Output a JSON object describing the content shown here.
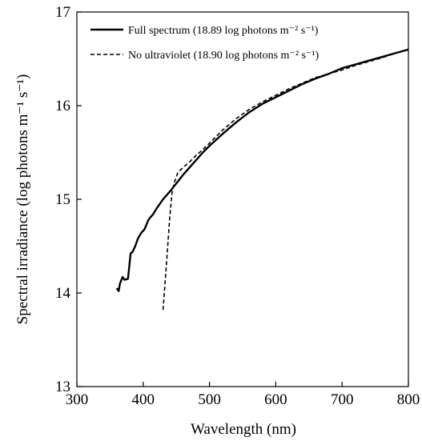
{
  "chart_data": {
    "type": "line",
    "xlabel": "Wavelength (nm)",
    "ylabel": "Spectral irradiance (log photons m⁻¹ s⁻¹)",
    "xlim": [
      300,
      800
    ],
    "ylim": [
      13,
      17
    ],
    "xticks": [
      300,
      400,
      500,
      600,
      700,
      800
    ],
    "yticks": [
      13,
      14,
      15,
      16,
      17
    ],
    "grid": false,
    "legend_position": "top-left",
    "series": [
      {
        "name": "Full spectrum (18.89 log photons m⁻² s⁻¹)",
        "style": "solid",
        "color": "#000000",
        "x": [
          360,
          363,
          365,
          369,
          372,
          377,
          381,
          384,
          388,
          392,
          397,
          402,
          408,
          410,
          415,
          420,
          425,
          430,
          440,
          450,
          460,
          470,
          480,
          490,
          500,
          520,
          540,
          560,
          580,
          600,
          620,
          640,
          660,
          680,
          700,
          720,
          740,
          760,
          780,
          800
        ],
        "y": [
          14.05,
          14.02,
          14.1,
          14.17,
          14.14,
          14.15,
          14.42,
          14.44,
          14.5,
          14.58,
          14.64,
          14.68,
          14.78,
          14.8,
          14.84,
          14.9,
          14.95,
          15.0,
          15.08,
          15.17,
          15.26,
          15.34,
          15.42,
          15.5,
          15.57,
          15.7,
          15.82,
          15.93,
          16.02,
          16.09,
          16.16,
          16.23,
          16.29,
          16.34,
          16.4,
          16.44,
          16.48,
          16.52,
          16.56,
          16.6
        ]
      },
      {
        "name": "No ultraviolet (18.90 log photons m⁻² s⁻¹)",
        "style": "dashed",
        "color": "#000000",
        "x": [
          430,
          435,
          440,
          444,
          448,
          452,
          460,
          470,
          480,
          490,
          500,
          520,
          540,
          560,
          580,
          600,
          620,
          640,
          660,
          680,
          700,
          720,
          740,
          760,
          780,
          800
        ],
        "y": [
          13.82,
          14.3,
          14.8,
          15.1,
          15.2,
          15.28,
          15.34,
          15.4,
          15.47,
          15.53,
          15.6,
          15.74,
          15.86,
          15.96,
          16.04,
          16.11,
          16.18,
          16.24,
          16.3,
          16.34,
          16.38,
          16.43,
          16.47,
          16.51,
          16.56,
          16.6
        ]
      }
    ]
  }
}
